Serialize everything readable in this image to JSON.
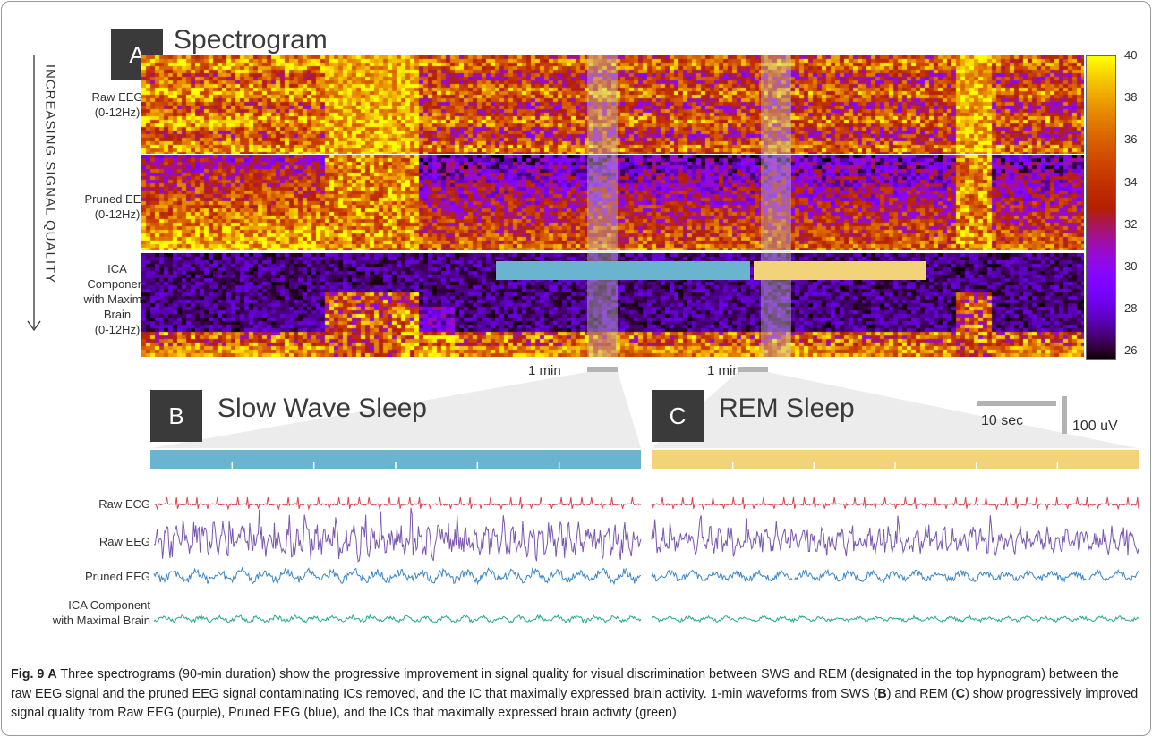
{
  "panel_a": {
    "tag": "A",
    "title": "Spectrogram",
    "side_label": "INCREASING SIGNAL QUALITY",
    "rows": [
      {
        "line1": "Raw EEG",
        "line2": "(0-12Hz)"
      },
      {
        "line1": "Pruned EEG",
        "line2": "(0-12Hz)"
      },
      {
        "line1": "ICA",
        "line2": "Component",
        "line3": "with Maximal",
        "line4": "Brain",
        "line5": "(0-12Hz)"
      }
    ],
    "colorbar_ticks": [
      "40",
      "38",
      "36",
      "34",
      "32",
      "30",
      "28",
      "26"
    ],
    "scale_1": "1 min",
    "scale_2": "1 min",
    "hypnogram": {
      "sws_color": "#6ab4d0",
      "rem_color": "#f3d37a"
    }
  },
  "panel_b": {
    "tag": "B",
    "title": "Slow Wave Sleep"
  },
  "panel_c": {
    "tag": "C",
    "title": "REM Sleep"
  },
  "scale_bar": {
    "time": "10 sec",
    "amplitude": "100 uV"
  },
  "signals": {
    "raw_ecg": "Raw ECG",
    "raw_eeg": "Raw EEG",
    "pruned_eeg": "Pruned EEG",
    "ica_line1": "ICA Component",
    "ica_line2": "with Maximal Brain",
    "colors": {
      "ecg": "#d9434f",
      "eeg": "#7a56b0",
      "pruned": "#3a86c4",
      "ica": "#25a88a"
    }
  },
  "caption": {
    "fig": "Fig. 9",
    "a": "A",
    "text1": " Three spectrograms (90-min duration) show the progressive improvement in signal quality for visual discrimination between SWS and REM (designated in the top hypnogram) between the raw EEG signal and the pruned EEG signal contaminating ICs removed, and the IC that maximally expressed brain activity. 1-min waveforms from SWS (",
    "b": "B",
    "text2": ") and REM (",
    "c": "C",
    "text3": ") show progressively improved signal quality from Raw EEG (purple), Pruned EEG (blue), and the ICs that maximally expressed brain activity (green)"
  }
}
